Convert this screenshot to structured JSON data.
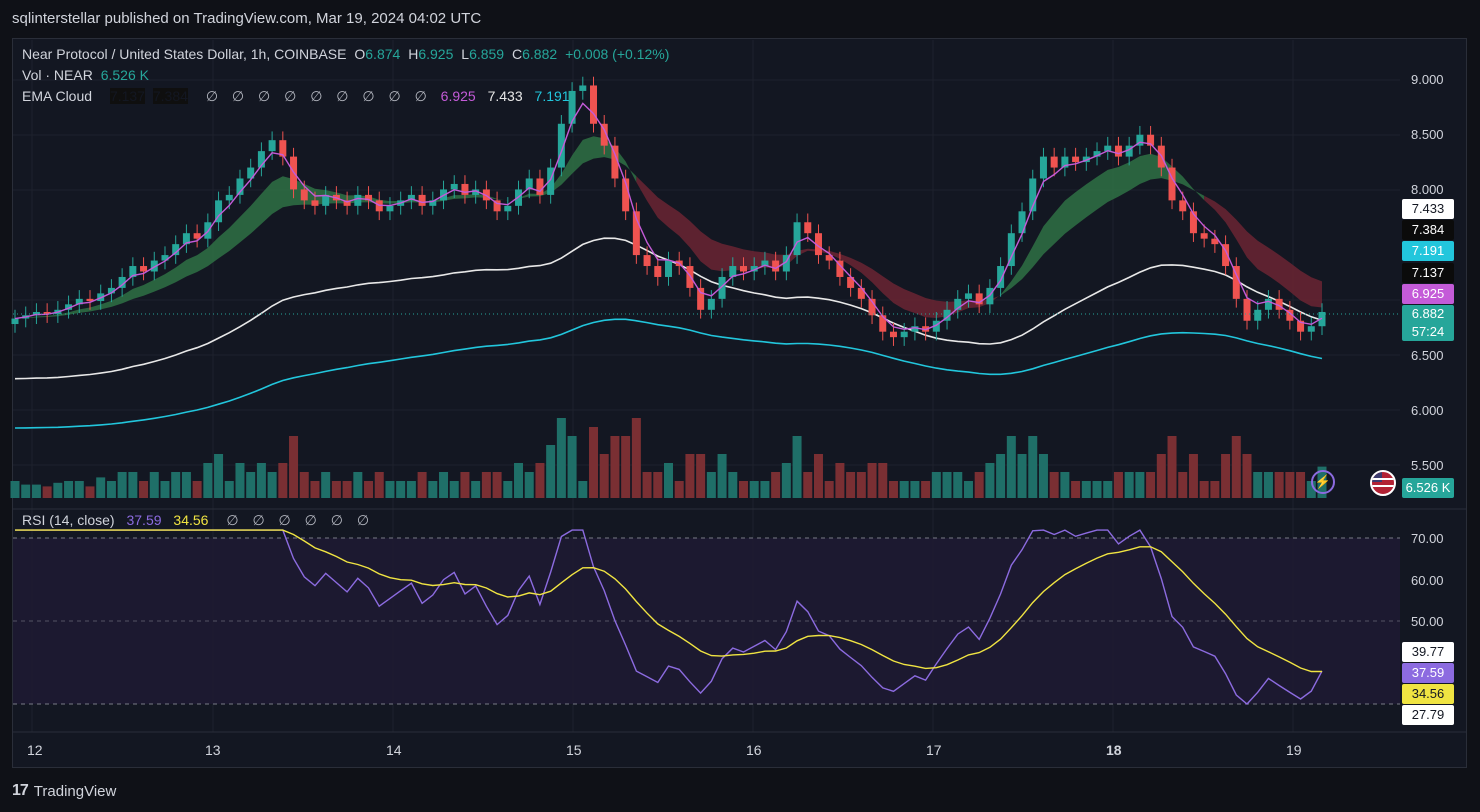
{
  "header": {
    "published": "sqlinterstellar published on TradingView.com, Mar 19, 2024 04:02 UTC"
  },
  "legend_main": {
    "title": "Near Protocol / United States Dollar, 1h, COINBASE",
    "o_label": "O",
    "o_val": "6.874",
    "h_label": "H",
    "h_val": "6.925",
    "l_label": "L",
    "l_val": "6.859",
    "c_label": "C",
    "c_val": "6.882",
    "change": "+0.008 (+0.12%)"
  },
  "legend_vol": {
    "label": "Vol · NEAR",
    "value": "6.526 K"
  },
  "legend_ema": {
    "label": "EMA Cloud",
    "v1": "7.137",
    "v2": "7.384",
    "v3": "6.925",
    "v4": "7.433",
    "v5": "7.191",
    "empty_glyph": "∅"
  },
  "legend_rsi": {
    "label": "RSI (14, close)",
    "v1": "37.59",
    "v2": "34.56"
  },
  "price_axis": [
    "9.000",
    "8.500",
    "8.000",
    "6.500",
    "6.000",
    "5.500"
  ],
  "price_tags": {
    "ema_fast_upper": "7.433",
    "ema_upper": "7.384",
    "ema_mid": "7.191",
    "ema_low": "7.137",
    "ema_fast": "6.925",
    "last": "6.882",
    "countdown": "57:24",
    "volume": "6.526 K"
  },
  "rsi_axis": [
    "70.00",
    "60.00",
    "50.00"
  ],
  "rsi_tags": {
    "t1": "39.77",
    "t2": "37.59",
    "t3": "34.56",
    "t4": "27.79"
  },
  "time_axis": [
    "12",
    "13",
    "14",
    "15",
    "16",
    "17",
    "18",
    "19"
  ],
  "footer": {
    "brand": "TradingView",
    "logo": "17"
  },
  "colors": {
    "up": "#26a69a",
    "down": "#ef5350",
    "cloud_up": "#2e6b43",
    "cloud_down": "#6b2532",
    "cyan": "#22c6dc",
    "white_line": "#e8e8e8",
    "magenta": "#c45bd8",
    "rsi": "#8c6be0",
    "rsi_ma": "#f0e442"
  },
  "chart_data": {
    "type": "candlestick",
    "title": "Near Protocol / United States Dollar, 1h, COINBASE",
    "ylim": [
      5.2,
      9.1
    ],
    "candles_close": [
      6.82,
      6.85,
      6.88,
      6.86,
      6.9,
      6.95,
      7.0,
      6.98,
      7.05,
      7.1,
      7.2,
      7.3,
      7.25,
      7.35,
      7.4,
      7.5,
      7.6,
      7.55,
      7.7,
      7.9,
      7.95,
      8.1,
      8.2,
      8.35,
      8.45,
      8.3,
      8.0,
      7.9,
      7.85,
      7.95,
      7.9,
      7.85,
      7.95,
      7.9,
      7.8,
      7.85,
      7.9,
      7.95,
      7.85,
      7.9,
      8.0,
      8.05,
      7.95,
      8.0,
      7.9,
      7.8,
      7.85,
      8.0,
      8.1,
      7.95,
      8.2,
      8.6,
      8.9,
      8.95,
      8.6,
      8.4,
      8.1,
      7.8,
      7.4,
      7.3,
      7.2,
      7.35,
      7.3,
      7.1,
      6.9,
      7.0,
      7.2,
      7.3,
      7.25,
      7.3,
      7.35,
      7.25,
      7.4,
      7.7,
      7.6,
      7.4,
      7.35,
      7.2,
      7.1,
      7.0,
      6.85,
      6.7,
      6.65,
      6.7,
      6.75,
      6.7,
      6.8,
      6.9,
      7.0,
      7.05,
      6.95,
      7.1,
      7.3,
      7.6,
      7.8,
      8.1,
      8.3,
      8.2,
      8.3,
      8.25,
      8.3,
      8.35,
      8.4,
      8.3,
      8.4,
      8.5,
      8.4,
      8.2,
      7.9,
      7.8,
      7.6,
      7.55,
      7.5,
      7.3,
      7.0,
      6.8,
      6.9,
      7.0,
      6.9,
      6.8,
      6.7,
      6.75,
      6.88
    ],
    "rsi": {
      "range": [
        20,
        80
      ],
      "levels": [
        30,
        50,
        70
      ]
    },
    "volume_last": "6.526 K",
    "x_labels": [
      "12",
      "13",
      "14",
      "15",
      "16",
      "17",
      "18",
      "19"
    ]
  }
}
